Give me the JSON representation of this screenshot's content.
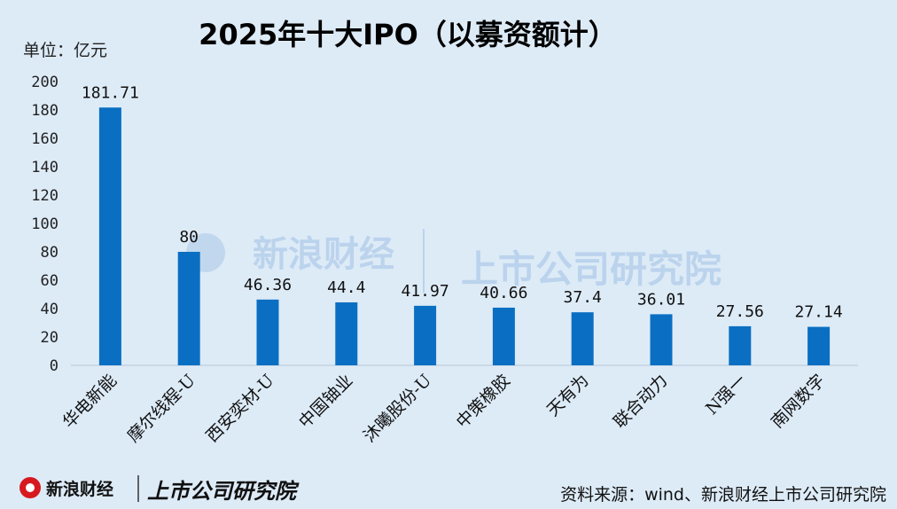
{
  "chart_data": {
    "type": "bar",
    "title": "2025年十大IPO（以募资额计）",
    "unit_label": "单位：亿元",
    "categories": [
      "华电新能",
      "摩尔线程-U",
      "西安奕材-U",
      "中国铀业",
      "沐曦股份-U",
      "中策橡胶",
      "天有为",
      "联合动力",
      "N强一",
      "南网数字"
    ],
    "values": [
      181.71,
      80,
      46.36,
      44.4,
      41.97,
      40.66,
      37.4,
      36.01,
      27.56,
      27.14
    ],
    "value_labels": [
      "181.71",
      "80",
      "46.36",
      "44.4",
      "41.97",
      "40.66",
      "37.4",
      "36.01",
      "27.56",
      "27.14"
    ],
    "ylim": [
      0,
      200
    ],
    "yticks": [
      0,
      20,
      40,
      60,
      80,
      100,
      120,
      140,
      160,
      180,
      200
    ],
    "grid": false,
    "bar_color": "#0a6fc2"
  },
  "source_text": "资料来源：wind、新浪财经上市公司研究院",
  "watermark": {
    "brand": "新浪财经",
    "institute": "上市公司研究院"
  }
}
